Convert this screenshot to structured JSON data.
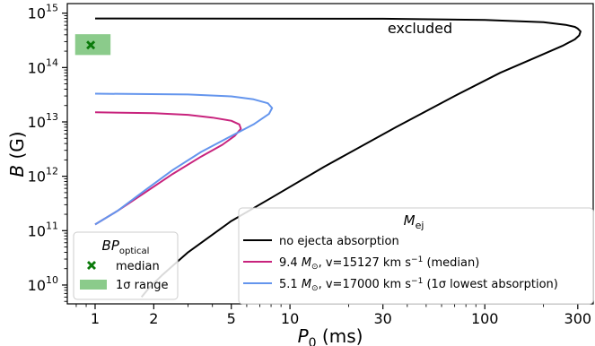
{
  "chart_data": {
    "type": "line",
    "xscale": "log",
    "yscale": "log",
    "xlim": [
      0.72,
      360
    ],
    "ylim": [
      4500000000.0,
      1500000000000000.0
    ],
    "xlabel": {
      "main": "P",
      "sub": "0",
      "rest": " (ms)"
    },
    "ylabel": {
      "main": "B",
      "rest": " (G)"
    },
    "x_ticks": [
      {
        "value": 1,
        "label": "1"
      },
      {
        "value": 2,
        "label": "2"
      },
      {
        "value": 5,
        "label": "5"
      },
      {
        "value": 10,
        "label": "10"
      },
      {
        "value": 30,
        "label": "30"
      },
      {
        "value": 100,
        "label": "100"
      },
      {
        "value": 300,
        "label": "300"
      }
    ],
    "y_ticks": [
      {
        "value": 10000000000.0,
        "label": "10",
        "exp": "10"
      },
      {
        "value": 100000000000.0,
        "label": "10",
        "exp": "11"
      },
      {
        "value": 1000000000000.0,
        "label": "10",
        "exp": "12"
      },
      {
        "value": 10000000000000.0,
        "label": "10",
        "exp": "13"
      },
      {
        "value": 100000000000000.0,
        "label": "10",
        "exp": "14"
      },
      {
        "value": 1000000000000000.0,
        "label": "10",
        "exp": "15"
      }
    ],
    "annotation": "excluded",
    "series": [
      {
        "name": "no ejecta absorption",
        "color": "#000000",
        "points": [
          [
            1,
            800000000000000.0
          ],
          [
            30,
            790000000000000.0
          ],
          [
            100,
            750000000000000.0
          ],
          [
            200,
            680000000000000.0
          ],
          [
            260,
            610000000000000.0
          ],
          [
            290,
            560000000000000.0
          ],
          [
            300,
            520000000000000.0
          ],
          [
            310,
            460000000000000.0
          ],
          [
            305,
            390000000000000.0
          ],
          [
            290,
            330000000000000.0
          ],
          [
            250,
            250000000000000.0
          ],
          [
            180,
            150000000000000.0
          ],
          [
            120,
            80000000000000.0
          ],
          [
            70,
            30000000000000.0
          ],
          [
            35,
            8000000000000.0
          ],
          [
            15,
            1500000000000.0
          ],
          [
            8,
            400000000000.0
          ],
          [
            5,
            150000000000.0
          ],
          [
            3,
            40000000000.0
          ],
          [
            2.2,
            15000000000.0
          ],
          [
            1.9,
            9000000000.0
          ],
          [
            1.73,
            6000000000.0
          ]
        ]
      },
      {
        "name": "9.4 M☉, v=15127 km s⁻¹ (median)",
        "label_parts": {
          "num": "9.4",
          "unit": "M",
          "sub": "⊙",
          "text": ", v=15127 km s",
          "sup": "−1",
          "tail": " (median)"
        },
        "color": "#c8237d",
        "points": [
          [
            1,
            15000000000000.0
          ],
          [
            2,
            14500000000000.0
          ],
          [
            3,
            13500000000000.0
          ],
          [
            4,
            12000000000000.0
          ],
          [
            5,
            10500000000000.0
          ],
          [
            5.5,
            9000000000000.0
          ],
          [
            5.6,
            7500000000000.0
          ],
          [
            5.2,
            5500000000000.0
          ],
          [
            4.5,
            3800000000000.0
          ],
          [
            3.5,
            2300000000000.0
          ],
          [
            2.5,
            1100000000000.0
          ],
          [
            1.8,
            500000000000.0
          ],
          [
            1.3,
            230000000000.0
          ],
          [
            1,
            130000000000.0
          ]
        ]
      },
      {
        "name": "5.1 M☉, v=17000 km s⁻¹ (1σ lowest absorption)",
        "label_parts": {
          "num": "5.1",
          "unit": "M",
          "sub": "⊙",
          "text": ", v=17000 km s",
          "sup": "−1",
          "tail": " (1σ lowest absorption)"
        },
        "color": "#6495ed",
        "points": [
          [
            1,
            33000000000000.0
          ],
          [
            3,
            32000000000000.0
          ],
          [
            5,
            29500000000000.0
          ],
          [
            6.5,
            26000000000000.0
          ],
          [
            7.7,
            22000000000000.0
          ],
          [
            8.1,
            18000000000000.0
          ],
          [
            7.8,
            14000000000000.0
          ],
          [
            6.5,
            9000000000000.0
          ],
          [
            5,
            5500000000000.0
          ],
          [
            3.5,
            2800000000000.0
          ],
          [
            2.5,
            1300000000000.0
          ],
          [
            1.8,
            550000000000.0
          ],
          [
            1.3,
            230000000000.0
          ],
          [
            1,
            130000000000.0
          ]
        ]
      }
    ],
    "optical_range": {
      "x": [
        0.79,
        1.2
      ],
      "y": [
        170000000000000.0,
        410000000000000.0
      ],
      "color": "#2ca02c",
      "alpha": 0.55
    },
    "optical_median": {
      "x": 0.95,
      "y": 260000000000000.0,
      "color": "#0a7a0a",
      "marker": "X"
    },
    "legend_main": {
      "title": "M",
      "title_sub": "ej",
      "entries": [
        "no ejecta absorption"
      ],
      "placement": "lower-right"
    },
    "legend_optical": {
      "title": "BP",
      "title_sub": "optical",
      "median_label": "median",
      "range_label": "1σ range",
      "placement": "lower-left"
    }
  }
}
